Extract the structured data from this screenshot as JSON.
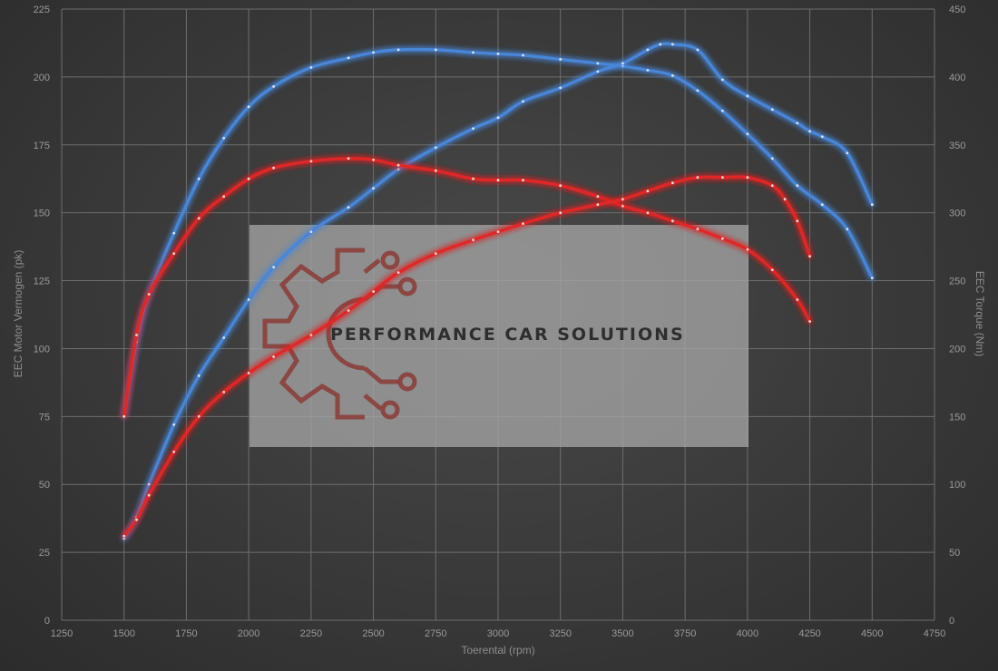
{
  "chart_data": {
    "type": "line",
    "xlabel": "Toerental (rpm)",
    "ylabel_left": "EEC Motor Vermogen (pk)",
    "ylabel_right": "EEC Torque (Nm)",
    "xlim": [
      1250,
      4750
    ],
    "xticks": [
      1250,
      1500,
      1750,
      2000,
      2250,
      2500,
      2750,
      3000,
      3250,
      3500,
      3750,
      4000,
      4250,
      4500,
      4750
    ],
    "ylim_left": [
      0,
      225
    ],
    "yticks_left": [
      0,
      25,
      50,
      75,
      100,
      125,
      150,
      175,
      200,
      225
    ],
    "ylim_right": [
      0,
      450
    ],
    "yticks_right": [
      0,
      50,
      100,
      150,
      200,
      250,
      300,
      350,
      400,
      450
    ],
    "grid": true,
    "colors": {
      "blue": "#4a86d8",
      "red": "#e02828"
    },
    "series": [
      {
        "color": "blue",
        "axis": "right",
        "x": [
          1500,
          1550,
          1600,
          1700,
          1800,
          1900,
          2000,
          2100,
          2250,
          2400,
          2500,
          2600,
          2750,
          2900,
          3000,
          3100,
          3250,
          3400,
          3500,
          3600,
          3700,
          3800,
          3900,
          4000,
          4100,
          4200,
          4300,
          4400,
          4500
        ],
        "y": [
          150,
          205,
          240,
          285,
          325,
          355,
          378,
          393,
          407,
          414,
          418,
          420,
          420,
          418,
          417,
          416,
          413,
          410,
          408,
          405,
          401,
          390,
          375,
          358,
          340,
          320,
          306,
          288,
          252
        ]
      },
      {
        "color": "blue",
        "axis": "left",
        "x": [
          1500,
          1550,
          1600,
          1700,
          1800,
          1900,
          2000,
          2100,
          2250,
          2400,
          2500,
          2600,
          2750,
          2900,
          3000,
          3100,
          3250,
          3400,
          3500,
          3600,
          3650,
          3700,
          3800,
          3900,
          4000,
          4100,
          4200,
          4250,
          4300,
          4400,
          4500
        ],
        "y": [
          30,
          38,
          50,
          72,
          90,
          104,
          118,
          130,
          143,
          152,
          159,
          166,
          174,
          181,
          185,
          191,
          196,
          202,
          205,
          210,
          212,
          212,
          210,
          199,
          193,
          188,
          183,
          180,
          178,
          172,
          153
        ]
      },
      {
        "color": "red",
        "axis": "right",
        "x": [
          1500,
          1550,
          1600,
          1700,
          1800,
          1900,
          2000,
          2100,
          2250,
          2400,
          2500,
          2600,
          2750,
          2900,
          3000,
          3100,
          3250,
          3400,
          3500,
          3600,
          3700,
          3800,
          3900,
          4000,
          4100,
          4200,
          4250
        ],
        "y": [
          150,
          210,
          240,
          270,
          296,
          312,
          325,
          333,
          338,
          340,
          339,
          335,
          331,
          325,
          324,
          324,
          320,
          312,
          305,
          300,
          294,
          288,
          281,
          273,
          258,
          236,
          220
        ]
      },
      {
        "color": "red",
        "axis": "left",
        "x": [
          1500,
          1550,
          1600,
          1700,
          1800,
          1900,
          2000,
          2100,
          2250,
          2400,
          2500,
          2600,
          2750,
          2900,
          3000,
          3100,
          3250,
          3400,
          3500,
          3600,
          3700,
          3800,
          3900,
          4000,
          4100,
          4150,
          4200,
          4250
        ],
        "y": [
          31,
          37,
          46,
          62,
          75,
          84,
          91,
          97,
          105,
          114,
          121,
          128,
          135,
          140,
          143,
          146,
          150,
          153,
          155,
          158,
          161,
          163,
          163,
          163,
          160,
          155,
          147,
          134
        ]
      }
    ]
  },
  "watermark": {
    "text": "PERFORMANCE CAR SOLUTIONS",
    "logo_color": "#8a3b36"
  }
}
